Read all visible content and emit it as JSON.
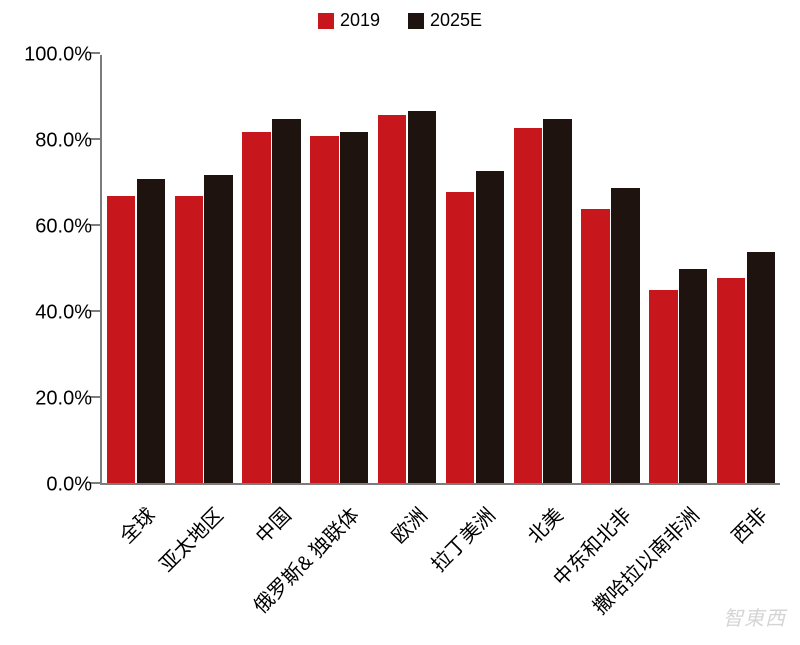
{
  "chart": {
    "type": "bar",
    "background_color": "#ffffff",
    "axis_color": "#7c7c7c",
    "text_color": "#000000",
    "y_axis": {
      "min": 0,
      "max": 100,
      "tick_step": 20,
      "labels": [
        "0.0%",
        "20.0%",
        "40.0%",
        "60.0%",
        "80.0%",
        "100.0%"
      ],
      "label_fontsize": 20
    },
    "series": [
      {
        "name": "2019",
        "color": "#c8161d"
      },
      {
        "name": "2025E",
        "color": "#1f130f"
      }
    ],
    "categories": [
      "全球",
      "亚太地区",
      "中国",
      "俄罗斯& 独联体",
      "欧洲",
      "拉丁美洲",
      "北美",
      "中东和北非",
      "撒哈拉以南非洲",
      "西非"
    ],
    "values": {
      "2019": [
        67,
        67,
        82,
        81,
        86,
        68,
        83,
        64,
        45,
        48
      ],
      "2025E": [
        71,
        72,
        85,
        82,
        87,
        73,
        85,
        69,
        50,
        54
      ]
    },
    "legend_fontsize": 18,
    "x_label_fontsize": 20,
    "x_label_rotation_deg": -45,
    "bar_group_gap": 0.16,
    "bar_pair_gap": 0.02
  },
  "watermark": "智東西"
}
